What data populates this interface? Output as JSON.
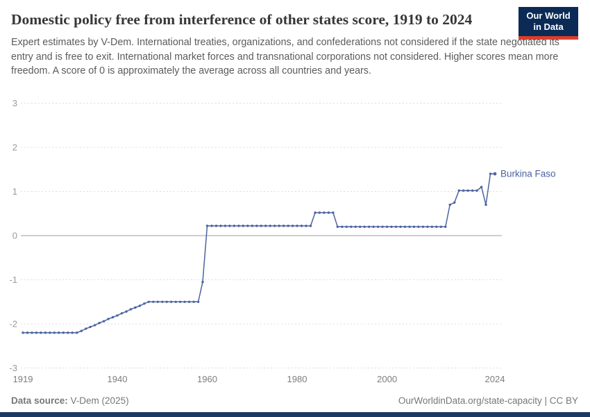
{
  "header": {
    "title": "Domestic policy free from interference of other states score, 1919 to 2024",
    "subtitle": "Expert estimates by V-Dem. International treaties, organizations, and confederations not considered if the state negotiated its entry and is free to exit. International market forces and transnational corporations not considered. Higher scores mean more freedom. A score of 0 is approximately the average across all countries and years."
  },
  "logo": {
    "line1": "Our World",
    "line2": "in Data"
  },
  "colors": {
    "logo_bg": "#0b2b56",
    "logo_red": "#dc3e2b",
    "bottom_bar": "#1a3a63"
  },
  "chart_data": {
    "type": "line",
    "title": "Domestic policy free from interference of other states score",
    "entity_label": "Burkina Faso",
    "line_color": "#4c63a0",
    "ylim": [
      -3,
      3
    ],
    "yticks": [
      3,
      2,
      1,
      0,
      -1,
      -2,
      -3
    ],
    "xticks": [
      1919,
      1940,
      1960,
      1980,
      2000,
      2024
    ],
    "grid": "horizontal-dashed, solid zero line",
    "legend_position": "end-of-line label",
    "x": [
      1919,
      1920,
      1921,
      1922,
      1923,
      1924,
      1925,
      1926,
      1927,
      1928,
      1929,
      1930,
      1931,
      1932,
      1933,
      1934,
      1935,
      1936,
      1937,
      1938,
      1939,
      1940,
      1941,
      1942,
      1943,
      1944,
      1945,
      1946,
      1947,
      1948,
      1949,
      1950,
      1951,
      1952,
      1953,
      1954,
      1955,
      1956,
      1957,
      1958,
      1959,
      1960,
      1961,
      1962,
      1963,
      1964,
      1965,
      1966,
      1967,
      1968,
      1969,
      1970,
      1971,
      1972,
      1973,
      1974,
      1975,
      1976,
      1977,
      1978,
      1979,
      1980,
      1981,
      1982,
      1983,
      1984,
      1985,
      1986,
      1987,
      1988,
      1989,
      1990,
      1991,
      1992,
      1993,
      1994,
      1995,
      1996,
      1997,
      1998,
      1999,
      2000,
      2001,
      2002,
      2003,
      2004,
      2005,
      2006,
      2007,
      2008,
      2009,
      2010,
      2011,
      2012,
      2013,
      2014,
      2015,
      2016,
      2017,
      2018,
      2019,
      2020,
      2021,
      2022,
      2023,
      2024
    ],
    "series": [
      {
        "name": "Burkina Faso",
        "values": [
          -2.2,
          -2.2,
          -2.2,
          -2.2,
          -2.2,
          -2.2,
          -2.2,
          -2.2,
          -2.2,
          -2.2,
          -2.2,
          -2.2,
          -2.2,
          -2.16,
          -2.11,
          -2.07,
          -2.03,
          -1.98,
          -1.94,
          -1.89,
          -1.85,
          -1.81,
          -1.76,
          -1.72,
          -1.67,
          -1.63,
          -1.59,
          -1.54,
          -1.5,
          -1.5,
          -1.5,
          -1.5,
          -1.5,
          -1.5,
          -1.5,
          -1.5,
          -1.5,
          -1.5,
          -1.5,
          -1.5,
          -1.05,
          0.22,
          0.22,
          0.22,
          0.22,
          0.22,
          0.22,
          0.22,
          0.22,
          0.22,
          0.22,
          0.22,
          0.22,
          0.22,
          0.22,
          0.22,
          0.22,
          0.22,
          0.22,
          0.22,
          0.22,
          0.22,
          0.22,
          0.22,
          0.22,
          0.52,
          0.52,
          0.52,
          0.52,
          0.52,
          0.2,
          0.2,
          0.2,
          0.2,
          0.2,
          0.2,
          0.2,
          0.2,
          0.2,
          0.2,
          0.2,
          0.2,
          0.2,
          0.2,
          0.2,
          0.2,
          0.2,
          0.2,
          0.2,
          0.2,
          0.2,
          0.2,
          0.2,
          0.2,
          0.2,
          0.7,
          0.75,
          1.02,
          1.02,
          1.02,
          1.02,
          1.02,
          1.1,
          0.7,
          1.4,
          1.4
        ]
      }
    ]
  },
  "footer": {
    "source_label": "Data source:",
    "source_value": "V-Dem (2025)",
    "rights": "OurWorldinData.org/state-capacity | CC BY"
  }
}
